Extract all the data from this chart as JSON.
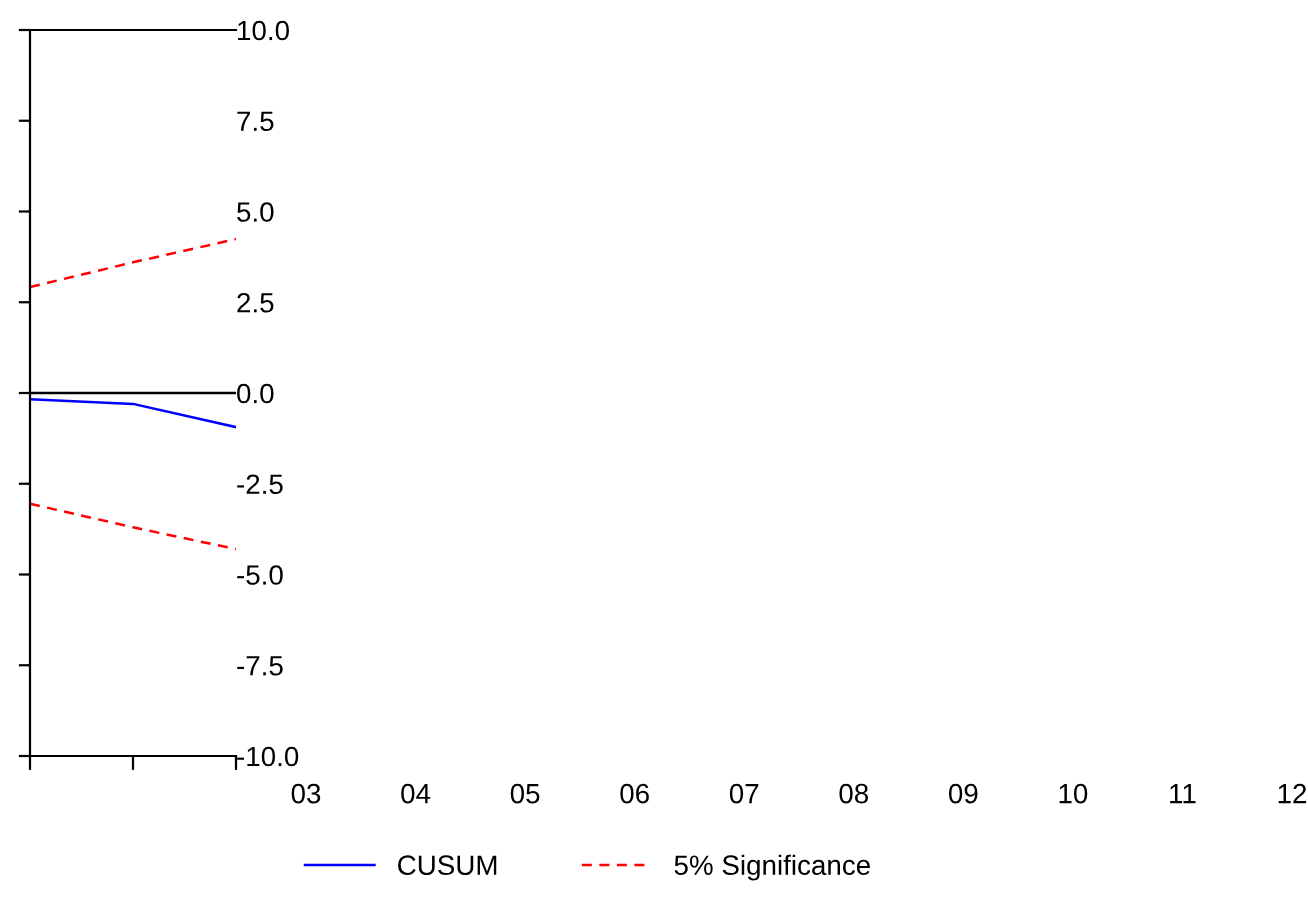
{
  "chart_data": {
    "type": "line",
    "categories": [
      null,
      null,
      null
    ],
    "annotations": [
      "03",
      "04",
      "05",
      "06",
      "07",
      "08",
      "09",
      "10",
      "11",
      "12"
    ],
    "series": [
      {
        "name": "CUSUM",
        "color": "#0000ff",
        "line_style": "solid",
        "values": [
          -0.17,
          -0.3,
          -0.94
        ]
      },
      {
        "name": "5% Significance",
        "color": "#ff0000",
        "line_style": "dashed",
        "values": [
          2.92,
          3.6,
          4.24
        ]
      },
      {
        "color": "#ff0000",
        "line_style": "dashed",
        "values": [
          -3.05,
          -3.7,
          -4.3
        ]
      }
    ],
    "ylim": [
      -10,
      10
    ],
    "yticks": [
      {
        "value": -10,
        "label": "-10.0"
      },
      {
        "value": -7.5,
        "label": "-7.5"
      },
      {
        "value": -5,
        "label": "-5.0"
      },
      {
        "value": -2.5,
        "label": "-2.5"
      },
      {
        "value": 0,
        "label": "0.0"
      },
      {
        "value": 2.5,
        "label": "2.5"
      },
      {
        "value": 5,
        "label": "5.0"
      },
      {
        "value": 7.5,
        "label": "7.5"
      },
      {
        "value": 10,
        "label": "10.0"
      }
    ],
    "ref_lines": [
      {
        "axis": "y",
        "value": 0,
        "color": "#000000"
      }
    ],
    "grid": false,
    "legend": "bottom",
    "marker": "none"
  }
}
